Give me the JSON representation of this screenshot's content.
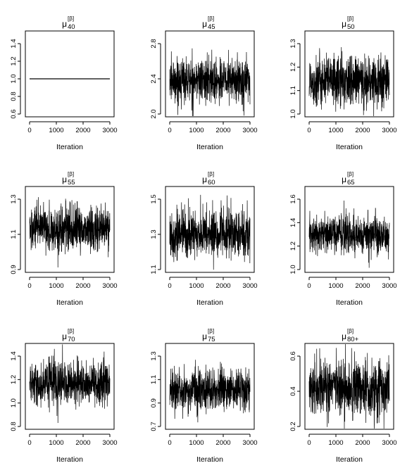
{
  "chart_data": [
    {
      "type": "line",
      "title_main": "μ",
      "title_sup": "[β]",
      "title_sub": "40",
      "xlabel": "Iteration",
      "xlim": [
        0,
        3000
      ],
      "xticks": [
        0,
        1000,
        2000,
        3000
      ],
      "ylim": [
        0.6,
        1.4
      ],
      "yticks": [
        "0.6",
        "0.8",
        "1.0",
        "1.2",
        "1.4"
      ],
      "series": [
        {
          "constant": 1.0
        }
      ]
    },
    {
      "type": "line",
      "title_main": "μ",
      "title_sup": "[β]",
      "title_sub": "45",
      "xlabel": "Iteration",
      "xlim": [
        0,
        3000
      ],
      "xticks": [
        0,
        1000,
        2000,
        3000
      ],
      "ylim": [
        2.0,
        2.8
      ],
      "yticks": [
        "2.0",
        "2.4",
        "2.8"
      ],
      "series": [
        {
          "mean": 2.38,
          "sd": 0.13,
          "min": 1.95,
          "max": 2.93
        }
      ]
    },
    {
      "type": "line",
      "title_main": "μ",
      "title_sup": "[β]",
      "title_sub": "50",
      "xlabel": "Iteration",
      "xlim": [
        0,
        3000
      ],
      "xticks": [
        0,
        1000,
        2000,
        3000
      ],
      "ylim": [
        1.0,
        1.3
      ],
      "yticks": [
        "1.0",
        "1.1",
        "1.2",
        "1.3"
      ],
      "series": [
        {
          "mean": 1.14,
          "sd": 0.055,
          "min": 0.93,
          "max": 1.34
        }
      ]
    },
    {
      "type": "line",
      "title_main": "μ",
      "title_sup": "[β]",
      "title_sub": "55",
      "xlabel": "Iteration",
      "xlim": [
        0,
        3000
      ],
      "xticks": [
        0,
        1000,
        2000,
        3000
      ],
      "ylim": [
        0.9,
        1.3
      ],
      "yticks": [
        "0.9",
        "1.1",
        "1.3"
      ],
      "series": [
        {
          "mean": 1.13,
          "sd": 0.065,
          "min": 0.89,
          "max": 1.38
        }
      ]
    },
    {
      "type": "line",
      "title_main": "μ",
      "title_sup": "[β]",
      "title_sub": "60",
      "xlabel": "Iteration",
      "xlim": [
        0,
        3000
      ],
      "xticks": [
        0,
        1000,
        2000,
        3000
      ],
      "ylim": [
        1.1,
        1.5
      ],
      "yticks": [
        "1.1",
        "1.3",
        "1.5"
      ],
      "series": [
        {
          "mean": 1.3,
          "sd": 0.07,
          "min": 1.06,
          "max": 1.55
        }
      ]
    },
    {
      "type": "line",
      "title_main": "μ",
      "title_sup": "[β]",
      "title_sub": "65",
      "xlabel": "Iteration",
      "xlim": [
        0,
        3000
      ],
      "xticks": [
        0,
        1000,
        2000,
        3000
      ],
      "ylim": [
        1.0,
        1.6
      ],
      "yticks": [
        "1.0",
        "1.2",
        "1.4",
        "1.6"
      ],
      "series": [
        {
          "mean": 1.3,
          "sd": 0.08,
          "min": 0.96,
          "max": 1.6
        }
      ]
    },
    {
      "type": "line",
      "title_main": "μ",
      "title_sup": "[β]",
      "title_sub": "70",
      "xlabel": "Iteration",
      "xlim": [
        0,
        3000
      ],
      "xticks": [
        0,
        1000,
        2000,
        3000
      ],
      "ylim": [
        0.8,
        1.4
      ],
      "yticks": [
        "0.8",
        "1.0",
        "1.2",
        "1.4"
      ],
      "series": [
        {
          "mean": 1.17,
          "sd": 0.09,
          "min": 0.83,
          "max": 1.5
        }
      ]
    },
    {
      "type": "line",
      "title_main": "μ",
      "title_sup": "[β]",
      "title_sub": "75",
      "xlabel": "Iteration",
      "xlim": [
        0,
        3000
      ],
      "xticks": [
        0,
        1000,
        2000,
        3000
      ],
      "ylim": [
        0.7,
        1.3
      ],
      "yticks": [
        "0.7",
        "0.9",
        "1.1",
        "1.3"
      ],
      "series": [
        {
          "mean": 1.01,
          "sd": 0.09,
          "min": 0.64,
          "max": 1.38
        }
      ]
    },
    {
      "type": "line",
      "title_main": "μ",
      "title_sup": "[β]",
      "title_sub": "80+",
      "xlabel": "Iteration",
      "xlim": [
        0,
        3000
      ],
      "xticks": [
        0,
        1000,
        2000,
        3000
      ],
      "ylim": [
        0.2,
        0.6
      ],
      "yticks": [
        "0.2",
        "0.4",
        "0.6"
      ],
      "series": [
        {
          "mean": 0.42,
          "sd": 0.08,
          "min": 0.15,
          "max": 0.72
        }
      ]
    }
  ]
}
